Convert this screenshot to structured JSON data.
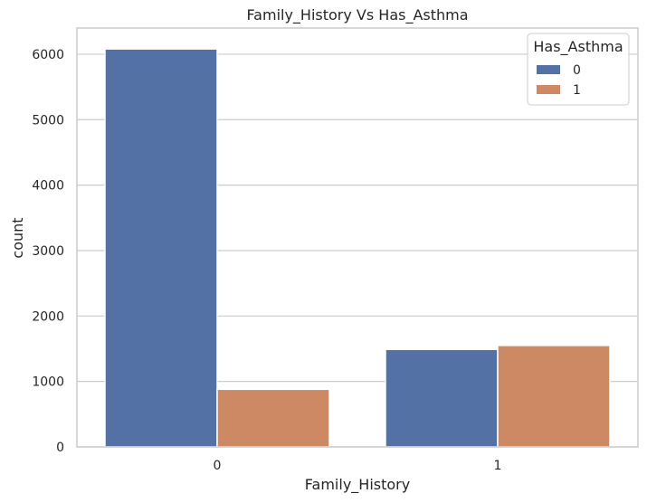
{
  "chart_data": {
    "type": "bar",
    "title": "Family_History Vs Has_Asthma",
    "xlabel": "Family_History",
    "ylabel": "count",
    "categories": [
      "0",
      "1"
    ],
    "series": [
      {
        "name": "0",
        "values": [
          6080,
          1490
        ],
        "color": "#5471a5"
      },
      {
        "name": "1",
        "values": [
          880,
          1550
        ],
        "color": "#cc8963"
      }
    ],
    "ylim": [
      0,
      6400
    ],
    "yticks": [
      0,
      1000,
      2000,
      3000,
      4000,
      5000,
      6000
    ],
    "legend": {
      "title": "Has_Asthma",
      "placement": "top-right"
    },
    "grid": "horizontal",
    "colors": {
      "background": "#ffffff",
      "grid": "#cccccc",
      "spine": "#cccccc",
      "text": "#262626"
    }
  }
}
